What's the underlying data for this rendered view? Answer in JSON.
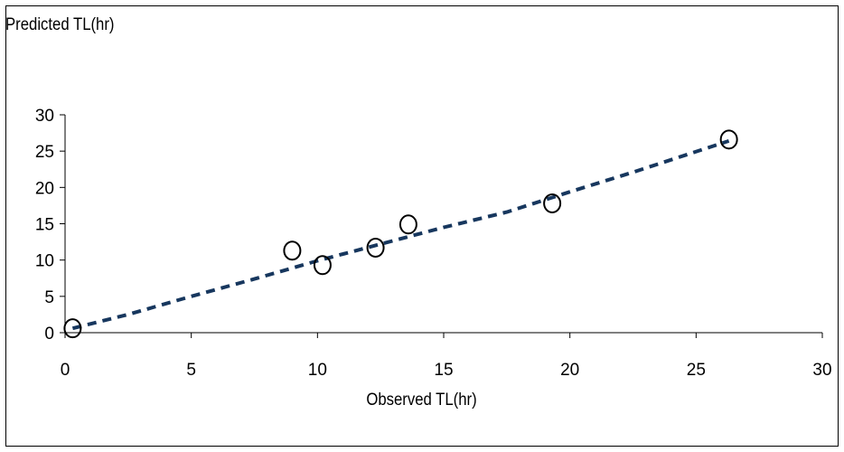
{
  "chart_data": {
    "type": "scatter",
    "title": "",
    "xlabel": "Observed TL(hr)",
    "ylabel": "Predicted TL(hr)",
    "xlim": [
      0,
      30
    ],
    "ylim": [
      0,
      30
    ],
    "x_ticks": [
      0,
      5,
      10,
      15,
      20,
      25,
      30
    ],
    "y_ticks": [
      0,
      5,
      10,
      15,
      20,
      25,
      30
    ],
    "grid": false,
    "legend": "none",
    "series": [
      {
        "marker": "open-circle",
        "color": "#000000",
        "points": [
          {
            "x": 0.3,
            "y": 0.6
          },
          {
            "x": 9.0,
            "y": 11.3
          },
          {
            "x": 10.2,
            "y": 9.3
          },
          {
            "x": 12.3,
            "y": 11.7
          },
          {
            "x": 13.6,
            "y": 14.9
          },
          {
            "x": 19.3,
            "y": 17.8
          },
          {
            "x": 26.3,
            "y": 26.6
          }
        ]
      },
      {
        "style": "dashed-line",
        "color": "#17375e",
        "points": [
          {
            "x": 0.3,
            "y": 0.6
          },
          {
            "x": 2.5,
            "y": 2.5
          },
          {
            "x": 5.0,
            "y": 5.0
          },
          {
            "x": 7.5,
            "y": 7.4
          },
          {
            "x": 10.0,
            "y": 9.9
          },
          {
            "x": 12.5,
            "y": 12.2
          },
          {
            "x": 15.0,
            "y": 14.5
          },
          {
            "x": 17.5,
            "y": 16.6
          },
          {
            "x": 20.0,
            "y": 19.4
          },
          {
            "x": 22.5,
            "y": 22.1
          },
          {
            "x": 26.3,
            "y": 26.4
          }
        ]
      }
    ]
  }
}
